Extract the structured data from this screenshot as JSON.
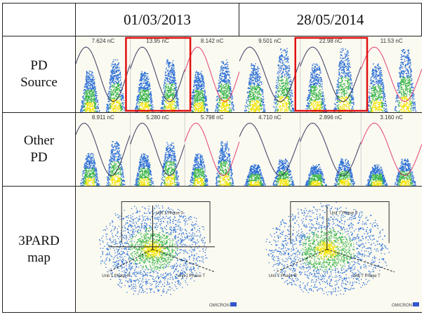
{
  "header": {
    "col1": "01/03/2013",
    "col2": "28/05/2014"
  },
  "rows": [
    {
      "label": "PD\nSource"
    },
    {
      "label": "Other\nPD"
    },
    {
      "label": "3PARD\nmap"
    }
  ],
  "panels": {
    "pd_source_2013": [
      "7.624 nC",
      "13.95 nC",
      "8.142 nC"
    ],
    "pd_source_2014": [
      "9.501 nC",
      "22.98 nC",
      "11.53 nC"
    ],
    "other_pd_2013": [
      "8.911 nC",
      "5.280 nC",
      "5.798 nC"
    ],
    "other_pd_2014": [
      "4.710 nC",
      "2.896 nC",
      "3.160 nC"
    ]
  },
  "map": {
    "phase_labels_2013": [
      "Unit 1 Phase 0",
      "Unit 1 Phase R",
      "Unit 1 Phase T"
    ],
    "phase_labels_2014": [
      "Unit 7 Phase 0",
      "Unit 7 Phase R",
      "Unit 7 Phase T"
    ],
    "brand": "OMICRON"
  },
  "colors": {
    "highlight": "#e01010",
    "sine_dark": "#2a2a55",
    "sine_pink": "#e0306a",
    "cloud_outer": "#2b6fd6",
    "cloud_mid": "#39b54a",
    "cloud_core": "#f2e400"
  }
}
